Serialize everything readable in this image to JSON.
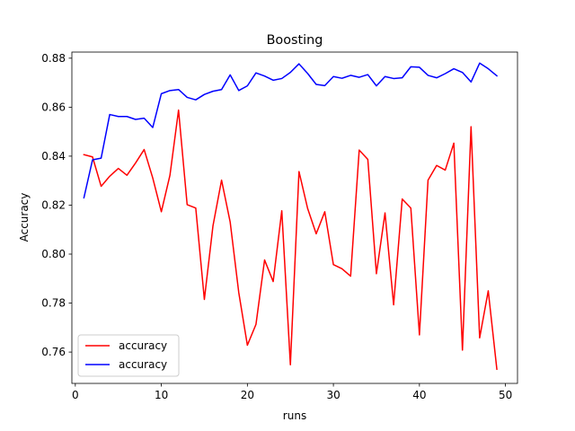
{
  "chart_data": {
    "type": "line",
    "title": "Boosting",
    "xlabel": "runs",
    "ylabel": "Accuracy",
    "xlim": [
      -0.4,
      51.4
    ],
    "ylim": [
      0.7472,
      0.8825
    ],
    "xticks": [
      0,
      10,
      20,
      30,
      40,
      50
    ],
    "yticks": [
      0.76,
      0.78,
      0.8,
      0.82,
      0.84,
      0.86,
      0.88
    ],
    "ytick_labels": [
      "0.76",
      "0.78",
      "0.80",
      "0.82",
      "0.84",
      "0.86",
      "0.88"
    ],
    "grid": false,
    "legend_position": "lower-left",
    "x": [
      1,
      2,
      3,
      4,
      5,
      6,
      7,
      8,
      9,
      10,
      11,
      12,
      13,
      14,
      15,
      16,
      17,
      18,
      19,
      20,
      21,
      22,
      23,
      24,
      25,
      26,
      27,
      28,
      29,
      30,
      31,
      32,
      33,
      34,
      35,
      36,
      37,
      38,
      39,
      40,
      41,
      42,
      43,
      44,
      45,
      46,
      47,
      48,
      49
    ],
    "series": [
      {
        "name": "accuracy",
        "color": "#ff0000",
        "values": [
          0.8406,
          0.8397,
          0.8277,
          0.8318,
          0.835,
          0.8322,
          0.8372,
          0.8427,
          0.8311,
          0.8173,
          0.8322,
          0.8588,
          0.8202,
          0.8188,
          0.7815,
          0.8115,
          0.8302,
          0.8131,
          0.7843,
          0.7628,
          0.7713,
          0.7976,
          0.7888,
          0.8177,
          0.7548,
          0.8337,
          0.8187,
          0.8083,
          0.8173,
          0.7957,
          0.794,
          0.791,
          0.8425,
          0.8387,
          0.792,
          0.8168,
          0.7793,
          0.8225,
          0.8188,
          0.767,
          0.8302,
          0.8362,
          0.8343,
          0.8453,
          0.7608,
          0.852,
          0.7658,
          0.785,
          0.753
        ]
      },
      {
        "name": "accuracy",
        "color": "#0000ff",
        "values": [
          0.823,
          0.8385,
          0.8392,
          0.857,
          0.8562,
          0.8562,
          0.855,
          0.8555,
          0.8517,
          0.8655,
          0.8668,
          0.8672,
          0.864,
          0.863,
          0.8652,
          0.8665,
          0.8672,
          0.8732,
          0.8668,
          0.8687,
          0.874,
          0.8727,
          0.871,
          0.8717,
          0.8742,
          0.8777,
          0.8738,
          0.8693,
          0.8688,
          0.8725,
          0.8718,
          0.873,
          0.8722,
          0.8733,
          0.8687,
          0.8725,
          0.8717,
          0.872,
          0.8765,
          0.8763,
          0.873,
          0.872,
          0.8737,
          0.8757,
          0.8742,
          0.8703,
          0.878,
          0.8757,
          0.8728
        ]
      }
    ]
  }
}
